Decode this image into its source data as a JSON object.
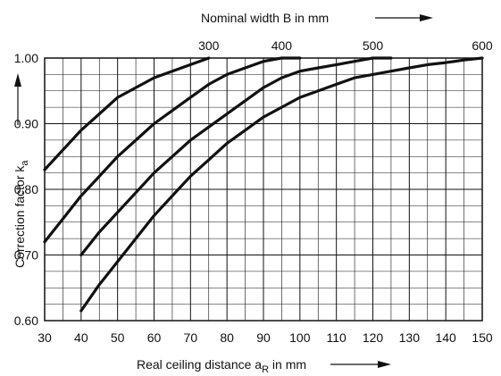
{
  "chart_data": {
    "type": "line",
    "top_label": {
      "text": "Nominal width B in mm"
    },
    "xlabel": {
      "prefix": "Real ceiling distance a",
      "subscript": "R",
      "suffix": " in mm"
    },
    "ylabel": {
      "prefix": "Correction factor k",
      "subscript": "a"
    },
    "xlim": [
      30,
      150
    ],
    "ylim": [
      0.6,
      1.0
    ],
    "grid": true,
    "x_ticks": [
      30,
      40,
      50,
      60,
      70,
      80,
      90,
      100,
      110,
      120,
      130,
      140,
      150
    ],
    "y_ticks": [
      0.6,
      0.7,
      0.8,
      0.9,
      1.0
    ],
    "x_tick_labels": [
      "30",
      "40",
      "50",
      "60",
      "70",
      "80",
      "90",
      "100",
      "110",
      "120",
      "130",
      "140",
      "150"
    ],
    "y_tick_labels": [
      "0.60",
      "0.70",
      "0.80",
      "0.90",
      "1.00"
    ],
    "series": [
      {
        "name": "300",
        "points": [
          [
            30,
            0.83
          ],
          [
            35,
            0.86
          ],
          [
            40,
            0.89
          ],
          [
            45,
            0.915
          ],
          [
            50,
            0.94
          ],
          [
            55,
            0.955
          ],
          [
            60,
            0.97
          ],
          [
            65,
            0.98
          ],
          [
            70,
            0.99
          ],
          [
            75,
            1.0
          ]
        ]
      },
      {
        "name": "400",
        "points": [
          [
            30,
            0.72
          ],
          [
            35,
            0.755
          ],
          [
            40,
            0.79
          ],
          [
            45,
            0.82
          ],
          [
            50,
            0.85
          ],
          [
            55,
            0.875
          ],
          [
            60,
            0.9
          ],
          [
            65,
            0.92
          ],
          [
            70,
            0.94
          ],
          [
            75,
            0.96
          ],
          [
            80,
            0.975
          ],
          [
            85,
            0.985
          ],
          [
            90,
            0.995
          ],
          [
            95,
            1.0
          ],
          [
            100,
            1.0
          ]
        ]
      },
      {
        "name": "500",
        "points": [
          [
            40,
            0.7
          ],
          [
            45,
            0.735
          ],
          [
            50,
            0.765
          ],
          [
            55,
            0.795
          ],
          [
            60,
            0.825
          ],
          [
            65,
            0.85
          ],
          [
            70,
            0.875
          ],
          [
            75,
            0.895
          ],
          [
            80,
            0.915
          ],
          [
            85,
            0.935
          ],
          [
            90,
            0.955
          ],
          [
            95,
            0.97
          ],
          [
            100,
            0.98
          ],
          [
            105,
            0.985
          ],
          [
            110,
            0.99
          ],
          [
            115,
            0.995
          ],
          [
            120,
            1.0
          ],
          [
            125,
            1.0
          ]
        ]
      },
      {
        "name": "600",
        "points": [
          [
            40,
            0.615
          ],
          [
            45,
            0.655
          ],
          [
            50,
            0.69
          ],
          [
            55,
            0.725
          ],
          [
            60,
            0.76
          ],
          [
            65,
            0.79
          ],
          [
            70,
            0.82
          ],
          [
            75,
            0.845
          ],
          [
            80,
            0.87
          ],
          [
            85,
            0.89
          ],
          [
            90,
            0.91
          ],
          [
            95,
            0.925
          ],
          [
            100,
            0.94
          ],
          [
            105,
            0.95
          ],
          [
            110,
            0.96
          ],
          [
            115,
            0.97
          ],
          [
            120,
            0.975
          ],
          [
            125,
            0.98
          ],
          [
            130,
            0.985
          ],
          [
            135,
            0.99
          ],
          [
            140,
            0.993
          ],
          [
            145,
            0.997
          ],
          [
            150,
            1.0
          ]
        ]
      }
    ]
  }
}
